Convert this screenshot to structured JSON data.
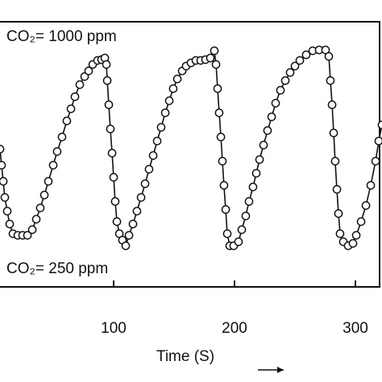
{
  "chart_data": {
    "type": "line",
    "xlabel": "Time (S)",
    "annotations": [
      "CO₂= 1000 ppm",
      "CO₂= 250 ppm"
    ],
    "xlim": [
      6,
      322
    ],
    "ylim": [
      0,
      330
    ],
    "xticks": [
      100,
      200,
      300
    ],
    "color": "#111111",
    "marker_fill": "#ffffff",
    "series": [
      {
        "name": null,
        "x": [
          6,
          7.3,
          8.7,
          10,
          12,
          14,
          16.7,
          20.7,
          24.7,
          28.7,
          32.7,
          36,
          39.3,
          42.7,
          46,
          50,
          53.3,
          57.3,
          61.3,
          64.7,
          68,
          72,
          76,
          79.3,
          82.7,
          86.7,
          90,
          92.7,
          94,
          94.7,
          96,
          97.3,
          98.7,
          100,
          101.3,
          102.7,
          104.7,
          107.3,
          110,
          112.7,
          116,
          119.3,
          122.7,
          126,
          129.3,
          132.7,
          136,
          139.3,
          142.7,
          146,
          149.3,
          152.7,
          156.7,
          160,
          164,
          168,
          172,
          176,
          180,
          183.3,
          184.7,
          186,
          187.3,
          188.7,
          190,
          191.3,
          192.7,
          194,
          196,
          199.3,
          203.3,
          206,
          209.3,
          212,
          215.3,
          218,
          220.7,
          224,
          227.3,
          230.7,
          234,
          238,
          242,
          246,
          250,
          254,
          259.3,
          264.7,
          270,
          275.3,
          278,
          279.3,
          280.7,
          282,
          283.3,
          284.7,
          286,
          287.3,
          290,
          294,
          298,
          300.7,
          304.7,
          308.7,
          312.7,
          316.7,
          319.3,
          322
        ],
        "values": [
          171,
          151,
          131,
          111,
          94,
          78,
          66,
          64,
          64,
          64,
          71,
          84,
          98,
          114,
          131,
          151,
          168,
          186,
          206,
          221,
          236,
          251,
          261,
          268,
          276,
          281,
          282,
          284,
          276,
          256,
          226,
          196,
          166,
          136,
          106,
          81,
          66,
          58,
          51,
          64,
          78,
          94,
          111,
          128,
          146,
          163,
          181,
          198,
          216,
          231,
          246,
          258,
          268,
          274,
          278,
          281,
          281,
          282,
          284,
          293,
          276,
          246,
          216,
          186,
          156,
          126,
          96,
          66,
          51,
          51,
          56,
          71,
          88,
          106,
          124,
          141,
          158,
          176,
          194,
          211,
          228,
          244,
          256,
          266,
          274,
          281,
          288,
          293,
          294,
          294,
          286,
          256,
          226,
          191,
          156,
          121,
          91,
          66,
          56,
          51,
          54,
          64,
          81,
          101,
          126,
          156,
          181,
          201
        ]
      }
    ]
  }
}
